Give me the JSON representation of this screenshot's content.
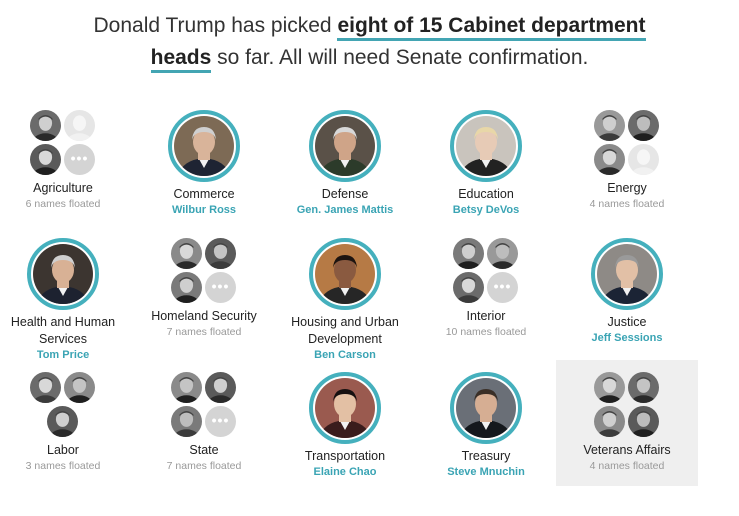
{
  "headline": {
    "prefix": "Donald Trump has picked ",
    "highlight_1": "eight of 15 Cabinet department",
    "highlight_2": "heads",
    "suffix": " so far. All will need Senate confirmation."
  },
  "colors": {
    "accent": "#43a5b3",
    "name_text": "#3aa4b4",
    "muted": "#999999",
    "highlight_bg": "#efefef"
  },
  "departments": [
    {
      "dept": "Agriculture",
      "floated": "6 names floated",
      "cluster": [
        "face-photo",
        "face-photo-light",
        "face-photo",
        "more"
      ]
    },
    {
      "dept": "Commerce",
      "name": "Wilbur Ross"
    },
    {
      "dept": "Defense",
      "name": "Gen. James Mattis"
    },
    {
      "dept": "Education",
      "name": "Betsy DeVos"
    },
    {
      "dept": "Energy",
      "floated": "4 names floated",
      "cluster": [
        "face-photo",
        "face-photo",
        "face-photo",
        "face-photo-light"
      ]
    },
    {
      "dept": "Health and Human Services",
      "name": "Tom Price"
    },
    {
      "dept": "Homeland Security",
      "floated": "7 names floated",
      "cluster": [
        "face-photo",
        "face-photo",
        "face-photo",
        "more"
      ]
    },
    {
      "dept": "Housing and Urban Development",
      "name": "Ben Carson"
    },
    {
      "dept": "Interior",
      "floated": "10 names floated",
      "cluster": [
        "face-photo",
        "face-photo",
        "face-photo",
        "more"
      ]
    },
    {
      "dept": "Justice",
      "name": "Jeff Sessions"
    },
    {
      "dept": "Labor",
      "floated": "3 names floated",
      "cluster": [
        "face-photo",
        "face-photo",
        "face-photo"
      ]
    },
    {
      "dept": "State",
      "floated": "7 names floated",
      "cluster": [
        "face-photo",
        "face-photo",
        "face-photo",
        "more"
      ]
    },
    {
      "dept": "Transportation",
      "name": "Elaine Chao"
    },
    {
      "dept": "Treasury",
      "name": "Steve Mnuchin"
    },
    {
      "dept": "Veterans Affairs",
      "floated": "4 names floated",
      "cluster": [
        "face-photo",
        "face-photo",
        "face-photo",
        "face-photo"
      ]
    }
  ]
}
